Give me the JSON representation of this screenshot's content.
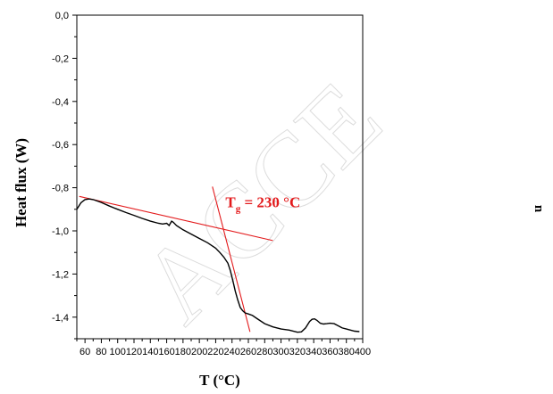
{
  "chart_data": {
    "type": "line",
    "xlabel": "T (°C)",
    "ylabel": "Heat flux (W)",
    "xlim": [
      50,
      400
    ],
    "ylim": [
      -1.5,
      0.0
    ],
    "x_ticks": [
      60,
      80,
      100,
      120,
      140,
      160,
      180,
      200,
      220,
      240,
      260,
      280,
      300,
      320,
      340,
      360,
      380,
      400
    ],
    "x_tick_labels": [
      "60",
      "80",
      "100",
      "120",
      "140",
      "160",
      "180",
      "200",
      "220",
      "240",
      "260",
      "280",
      "300",
      "320",
      "340",
      "360",
      "380",
      "400"
    ],
    "y_ticks": [
      0.0,
      -0.2,
      -0.4,
      -0.6,
      -0.8,
      -1.0,
      -1.2,
      -1.4
    ],
    "y_tick_labels": [
      "0,0",
      "-0,2",
      "-0,4",
      "-0,6",
      "-0,8",
      "-1,0",
      "-1,2",
      "-1,4"
    ],
    "grid": false,
    "series": [
      {
        "color": "#000000",
        "x": [
          50,
          55,
          60,
          65,
          70,
          80,
          90,
          100,
          110,
          120,
          130,
          140,
          150,
          155,
          160,
          163,
          166,
          168,
          172,
          180,
          190,
          200,
          210,
          220,
          225,
          230,
          235,
          238,
          241,
          244,
          247,
          250,
          253,
          256,
          260,
          265,
          270,
          280,
          290,
          300,
          310,
          320,
          325,
          330,
          335,
          338,
          341,
          344,
          348,
          352,
          356,
          360,
          365,
          370,
          375,
          380,
          385,
          390,
          396
        ],
        "y": [
          -0.9,
          -0.87,
          -0.855,
          -0.852,
          -0.855,
          -0.868,
          -0.885,
          -0.9,
          -0.915,
          -0.928,
          -0.942,
          -0.955,
          -0.965,
          -0.968,
          -0.965,
          -0.975,
          -0.955,
          -0.96,
          -0.975,
          -0.995,
          -1.015,
          -1.035,
          -1.055,
          -1.08,
          -1.1,
          -1.122,
          -1.15,
          -1.185,
          -1.23,
          -1.28,
          -1.32,
          -1.355,
          -1.37,
          -1.38,
          -1.385,
          -1.392,
          -1.405,
          -1.43,
          -1.445,
          -1.455,
          -1.46,
          -1.47,
          -1.468,
          -1.45,
          -1.42,
          -1.41,
          -1.408,
          -1.415,
          -1.428,
          -1.432,
          -1.43,
          -1.428,
          -1.43,
          -1.44,
          -1.45,
          -1.455,
          -1.46,
          -1.465,
          -1.467
        ]
      }
    ],
    "tangent_lines": [
      {
        "color": "#e31a1c",
        "x": [
          53,
          290
        ],
        "y": [
          -0.84,
          -1.045
        ]
      },
      {
        "color": "#e31a1c",
        "x": [
          216,
          262
        ],
        "y": [
          -0.795,
          -1.468
        ]
      }
    ],
    "annotations": [
      {
        "text": "T",
        "subscript": "g",
        "rest": " = 230 °C",
        "color": "#e31a1c",
        "x": 232,
        "y": -0.89
      }
    ],
    "right_marker": "n",
    "watermark": "ACCE"
  }
}
